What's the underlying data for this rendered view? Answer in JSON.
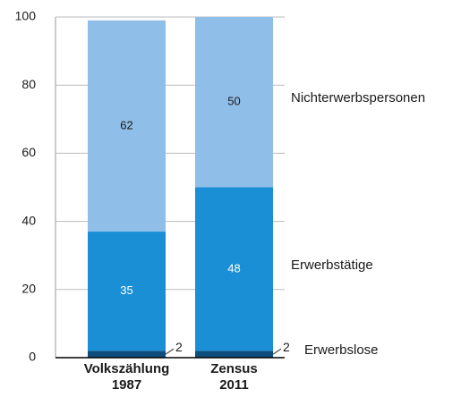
{
  "chart_data": {
    "type": "stacked-bar",
    "categories": [
      [
        "Volkszählung",
        "1987"
      ],
      [
        "Zensus",
        "2011"
      ]
    ],
    "series": [
      {
        "name": "Erwerbslose",
        "color": "#0e4c7c",
        "values": [
          2,
          2
        ]
      },
      {
        "name": "Erwerbstätige",
        "color": "#1a8fd6",
        "values": [
          35,
          48
        ]
      },
      {
        "name": "Nichterwerbspersonen",
        "color": "#8fbee8",
        "values": [
          62,
          50
        ]
      }
    ],
    "ylim": [
      0,
      100
    ],
    "yticks": [
      0,
      20,
      40,
      60,
      80,
      100
    ],
    "grid": true
  }
}
